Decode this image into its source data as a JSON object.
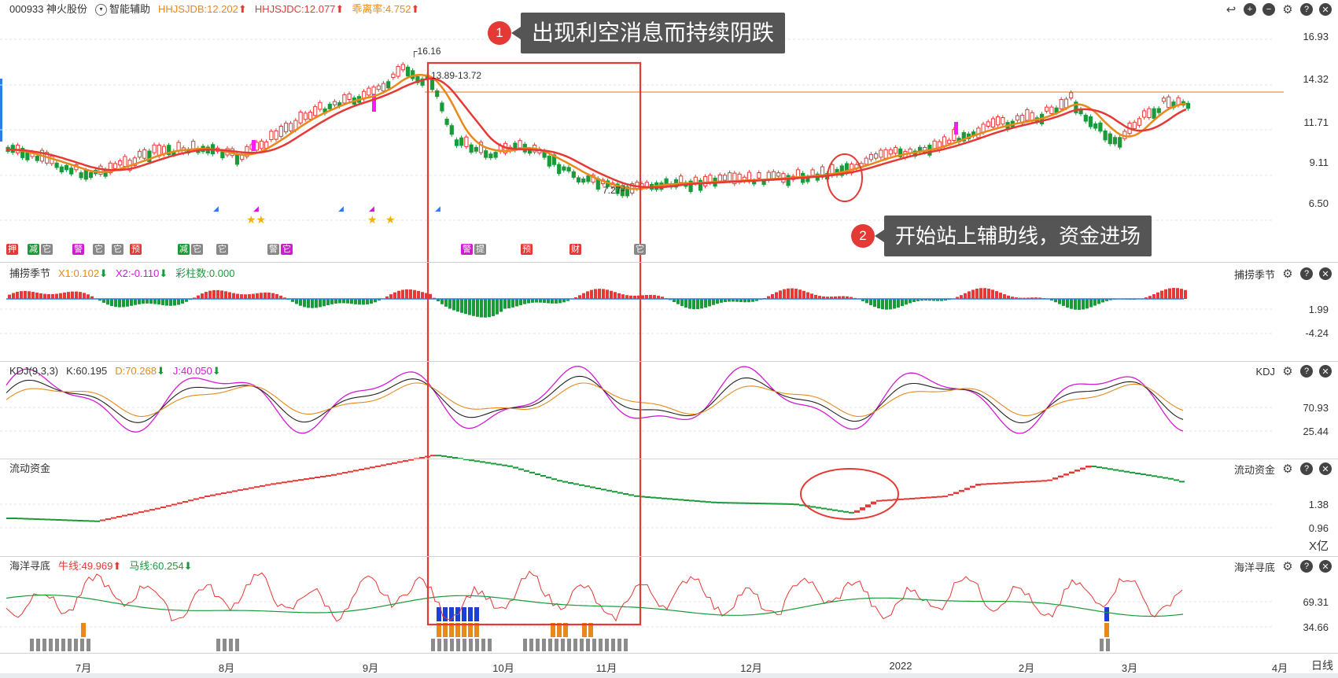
{
  "stock": {
    "code_name": "000933 神火股份",
    "assist_label": "智能辅助",
    "jdb": "HHJSJDB:12.202",
    "jdc": "HHJSJDC:12.077",
    "deviation": "乖离率:4.752"
  },
  "price_axis": [
    "16.93",
    "14.32",
    "11.71",
    "9.11",
    "6.50"
  ],
  "price_marks": {
    "high": "16.16",
    "range": "13.89-13.72",
    "low": "7.27"
  },
  "panel2": {
    "name": "捕捞季节",
    "x1": "X1:0.102",
    "x2": "X2:-0.110",
    "color_bars": "彩柱数:0.000",
    "axis": [
      "1.99",
      "-4.24"
    ]
  },
  "panel3": {
    "name": "KDJ(9,3,3)",
    "right_name": "KDJ",
    "k": "K:60.195",
    "d": "D:70.268",
    "j": "J:40.050",
    "axis": [
      "70.93",
      "25.44"
    ]
  },
  "panel4": {
    "name": "流动资金",
    "axis": [
      "1.38",
      "0.96"
    ],
    "unit": "X亿"
  },
  "panel5": {
    "name": "海洋寻底",
    "bull": "牛线:49.969",
    "horse": "马线:60.254",
    "axis": [
      "69.31",
      "34.66"
    ]
  },
  "x_axis": [
    "7月",
    "8月",
    "9月",
    "10月",
    "11月",
    "12月",
    "2022",
    "2月",
    "3月",
    "4月"
  ],
  "period_button": "日线",
  "callouts": [
    {
      "num": "1",
      "text": "出现利空消息而持续阴跌"
    },
    {
      "num": "2",
      "text": "开始站上辅助线，资金进场"
    }
  ],
  "signals": [
    "押",
    "减",
    "它",
    "警",
    "它",
    "它",
    "预",
    "减",
    "它",
    "它",
    "警",
    "它",
    "警",
    "提",
    "预",
    "财",
    "它",
    "它",
    "它"
  ],
  "colors": {
    "up": "#e53935",
    "down": "#1a9b3a",
    "orange": "#e8891a",
    "magenta": "#d21ad2",
    "highlight": "#e53935"
  }
}
